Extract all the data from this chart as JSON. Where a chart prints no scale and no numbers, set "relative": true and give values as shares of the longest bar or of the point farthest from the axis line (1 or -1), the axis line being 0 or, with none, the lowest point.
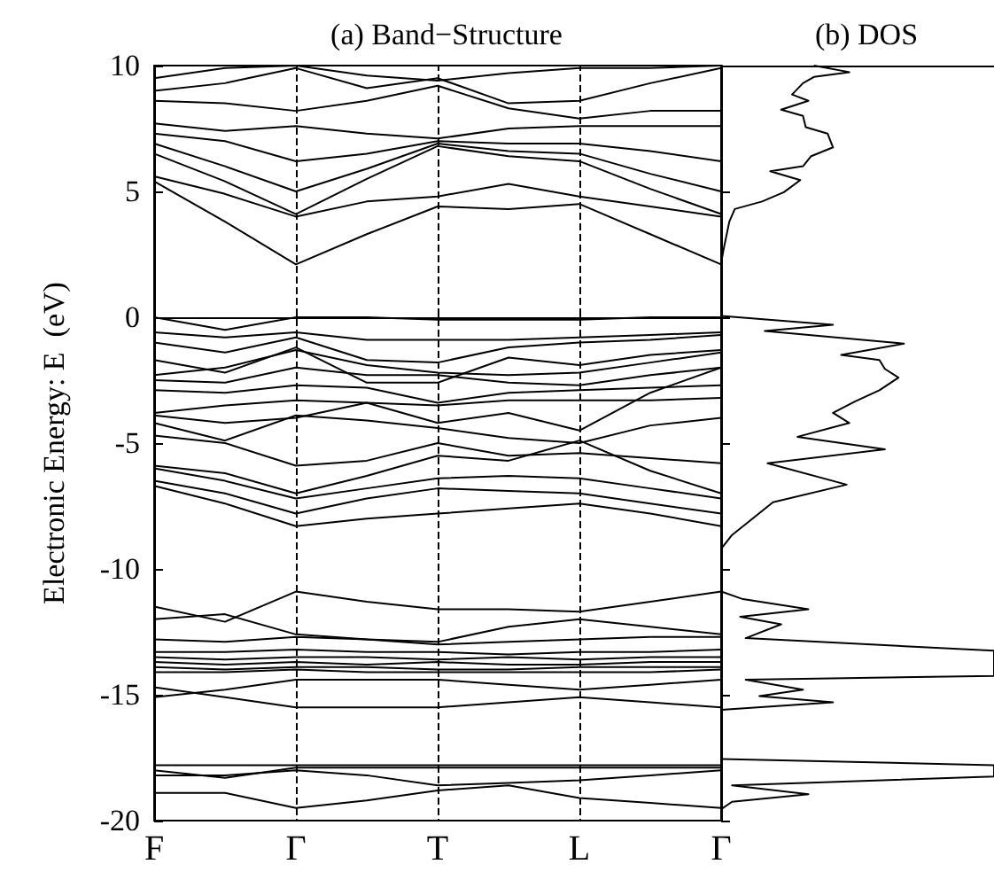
{
  "chart_data": [
    {
      "type": "line",
      "title": "(a) Band−Structure",
      "ylabel": "Electronic Energy: E  (eV)",
      "categories": [
        "F",
        null,
        "Γ",
        null,
        "T",
        null,
        "L",
        null,
        "Γ"
      ],
      "ylim": [
        -20,
        10
      ],
      "yticks": [
        -20,
        -15,
        -10,
        -5,
        0,
        5,
        10
      ],
      "marker": "none",
      "line_style": "solid",
      "ref_lines": [
        {
          "axis": "x",
          "value": "Γ",
          "line_style": "dashed"
        },
        {
          "axis": "x",
          "value": "T",
          "line_style": "dashed"
        },
        {
          "axis": "x",
          "value": "L",
          "line_style": "dashed"
        }
      ],
      "series": [
        {
          "color": "#000000",
          "values": [
            5.4,
            3.8,
            2.1,
            3.3,
            4.4,
            4.3,
            4.5,
            3.3,
            2.1
          ]
        },
        {
          "color": "#000000",
          "values": [
            5.6,
            4.9,
            4.0,
            4.6,
            4.8,
            5.3,
            4.8,
            4.4,
            4.0
          ]
        },
        {
          "color": "#000000",
          "values": [
            6.5,
            5.4,
            4.1,
            5.5,
            6.8,
            6.4,
            6.2,
            5.1,
            4.1
          ]
        },
        {
          "color": "#000000",
          "values": [
            6.9,
            6.0,
            5.0,
            5.9,
            6.9,
            6.6,
            6.5,
            5.7,
            5.0
          ]
        },
        {
          "color": "#000000",
          "values": [
            7.3,
            7.0,
            6.2,
            6.5,
            7.0,
            6.9,
            6.9,
            6.6,
            6.2
          ]
        },
        {
          "color": "#000000",
          "values": [
            7.7,
            7.4,
            7.6,
            7.3,
            7.1,
            7.5,
            7.6,
            7.6,
            7.6
          ]
        },
        {
          "color": "#000000",
          "values": [
            8.6,
            8.5,
            8.2,
            8.6,
            9.2,
            8.3,
            7.9,
            8.2,
            8.2
          ]
        },
        {
          "color": "#000000",
          "values": [
            9.0,
            9.3,
            9.9,
            9.1,
            9.5,
            8.5,
            8.6,
            9.3,
            9.9
          ]
        },
        {
          "color": "#000000",
          "values": [
            9.5,
            9.9,
            10.0,
            9.6,
            9.4,
            9.7,
            9.9,
            9.9,
            10.0
          ]
        },
        {
          "color": "#000000",
          "values": [
            0.0,
            -0.5,
            0.0,
            0.0,
            -0.1,
            -0.1,
            -0.1,
            0.0,
            0.0
          ]
        },
        {
          "color": "#000000",
          "values": [
            -0.6,
            -0.8,
            -0.6,
            -0.9,
            -0.9,
            -0.9,
            -0.8,
            -0.7,
            -0.6
          ]
        },
        {
          "color": "#000000",
          "values": [
            -1.0,
            -1.4,
            -0.8,
            -1.7,
            -1.8,
            -1.2,
            -1.0,
            -0.9,
            -0.7
          ]
        },
        {
          "color": "#000000",
          "values": [
            -1.7,
            -2.2,
            -1.2,
            -2.6,
            -2.6,
            -1.6,
            -1.9,
            -1.5,
            -1.3
          ]
        },
        {
          "color": "#000000",
          "values": [
            -2.3,
            -2.0,
            -1.3,
            -1.9,
            -2.2,
            -2.3,
            -2.2,
            -1.8,
            -1.4
          ]
        },
        {
          "color": "#000000",
          "values": [
            -2.5,
            -2.6,
            -2.0,
            -2.3,
            -2.3,
            -2.6,
            -2.7,
            -2.3,
            -2.0
          ]
        },
        {
          "color": "#000000",
          "values": [
            -2.9,
            -3.0,
            -2.7,
            -2.8,
            -3.4,
            -3.0,
            -2.9,
            -2.8,
            -2.7
          ]
        },
        {
          "color": "#000000",
          "values": [
            -3.8,
            -3.5,
            -3.3,
            -3.4,
            -3.5,
            -3.3,
            -3.3,
            -3.3,
            -3.2
          ]
        },
        {
          "color": "#000000",
          "values": [
            -3.9,
            -4.2,
            -4.0,
            -3.4,
            -4.2,
            -3.8,
            -4.5,
            -3.0,
            -2.0
          ]
        },
        {
          "color": "#000000",
          "values": [
            -4.2,
            -4.9,
            -3.9,
            -4.1,
            -4.4,
            -4.8,
            -5.0,
            -4.3,
            -4.0
          ]
        },
        {
          "color": "#000000",
          "values": [
            -4.7,
            -5.0,
            -5.9,
            -5.7,
            -5.0,
            -5.5,
            -5.4,
            -5.6,
            -5.8
          ]
        },
        {
          "color": "#000000",
          "values": [
            -5.9,
            -6.2,
            -7.0,
            -6.3,
            -5.5,
            -5.7,
            -4.9,
            -6.1,
            -7.0
          ]
        },
        {
          "color": "#000000",
          "values": [
            -6.0,
            -6.5,
            -7.2,
            -6.8,
            -6.4,
            -6.3,
            -6.4,
            -6.8,
            -7.2
          ]
        },
        {
          "color": "#000000",
          "values": [
            -6.5,
            -7.0,
            -7.8,
            -7.2,
            -6.8,
            -6.9,
            -7.0,
            -7.4,
            -7.8
          ]
        },
        {
          "color": "#000000",
          "values": [
            -6.7,
            -7.4,
            -8.3,
            -8.0,
            -7.8,
            -7.6,
            -7.4,
            -7.8,
            -8.3
          ]
        },
        {
          "color": "#000000",
          "values": [
            -11.5,
            -12.1,
            -10.9,
            -11.3,
            -11.6,
            -11.6,
            -11.7,
            -11.3,
            -10.9
          ]
        },
        {
          "color": "#000000",
          "values": [
            -12.0,
            -11.8,
            -12.6,
            -12.8,
            -12.9,
            -12.3,
            -12.0,
            -12.3,
            -12.6
          ]
        },
        {
          "color": "#000000",
          "values": [
            -12.8,
            -12.9,
            -12.7,
            -12.8,
            -13.0,
            -12.9,
            -12.8,
            -12.7,
            -12.7
          ]
        },
        {
          "color": "#000000",
          "values": [
            -13.3,
            -13.3,
            -13.2,
            -13.3,
            -13.3,
            -13.4,
            -13.3,
            -13.3,
            -13.2
          ]
        },
        {
          "color": "#000000",
          "values": [
            -13.5,
            -13.6,
            -13.5,
            -13.5,
            -13.6,
            -13.5,
            -13.6,
            -13.5,
            -13.5
          ]
        },
        {
          "color": "#000000",
          "values": [
            -13.7,
            -13.8,
            -13.7,
            -13.8,
            -13.7,
            -13.8,
            -13.8,
            -13.7,
            -13.7
          ]
        },
        {
          "color": "#000000",
          "values": [
            -13.9,
            -14.0,
            -13.9,
            -13.9,
            -14.0,
            -14.0,
            -13.9,
            -13.9,
            -13.9
          ]
        },
        {
          "color": "#000000",
          "values": [
            -14.1,
            -14.1,
            -14.0,
            -14.1,
            -14.1,
            -14.1,
            -14.1,
            -14.1,
            -14.0
          ]
        },
        {
          "color": "#000000",
          "values": [
            -15.1,
            -14.8,
            -14.4,
            -14.4,
            -14.4,
            -14.6,
            -14.8,
            -14.6,
            -14.4
          ]
        },
        {
          "color": "#000000",
          "values": [
            -14.7,
            -15.1,
            -15.5,
            -15.5,
            -15.5,
            -15.3,
            -15.1,
            -15.3,
            -15.5
          ]
        },
        {
          "color": "#000000",
          "values": [
            -17.8,
            -17.8,
            -17.8,
            -17.8,
            -17.8,
            -17.8,
            -17.8,
            -17.8,
            -17.8
          ]
        },
        {
          "color": "#000000",
          "values": [
            -18.0,
            -18.3,
            -17.9,
            -17.9,
            -17.9,
            -17.9,
            -17.9,
            -17.9,
            -17.9
          ]
        },
        {
          "color": "#000000",
          "values": [
            -18.2,
            -18.2,
            -18.0,
            -18.2,
            -18.6,
            -18.5,
            -18.4,
            -18.2,
            -18.0
          ]
        },
        {
          "color": "#000000",
          "values": [
            -18.9,
            -18.9,
            -19.5,
            -19.2,
            -18.8,
            -18.6,
            -19.1,
            -19.3,
            -19.5
          ]
        }
      ]
    },
    {
      "type": "line",
      "title": "(b) DOS",
      "orientation": "horizontal",
      "relative": true,
      "ylim": [
        -20,
        10
      ],
      "yticks": [
        -20,
        -15,
        -10,
        -5,
        0,
        5,
        10
      ],
      "tick_labels": false,
      "marker": "none",
      "line_style": "solid",
      "series": [
        {
          "color": "#000000",
          "x": [
            10.0,
            9.74,
            9.55,
            9.3,
            8.85,
            8.6,
            8.25,
            8.0,
            7.55,
            7.3,
            6.75,
            6.4,
            6.0,
            5.8,
            5.45,
            4.97,
            4.6,
            4.3,
            3.8,
            2.75,
            2.15,
            1.0,
            0.05,
            -0.3,
            -0.55,
            -1.05,
            -1.5,
            -1.7,
            -2.05,
            -2.4,
            -2.9,
            -3.35,
            -3.8,
            -4.2,
            -4.75,
            -5.25,
            -5.8,
            -6.65,
            -7.35,
            -8.65,
            -9.2,
            -10.0,
            -10.9,
            -11.2,
            -11.6,
            -11.9,
            -12.2,
            -12.75,
            -13.25,
            -14.25,
            -14.4,
            -14.8,
            -15.05,
            -15.3,
            -15.6,
            -16.5,
            -17.55,
            -17.8,
            -18.25,
            -18.6,
            -18.95,
            -19.25,
            -19.55
          ],
          "values": [
            0.34,
            0.47,
            0.34,
            0.3,
            0.26,
            0.32,
            0.22,
            0.3,
            0.31,
            0.39,
            0.41,
            0.33,
            0.3,
            0.18,
            0.29,
            0.23,
            0.15,
            0.05,
            0.03,
            0.01,
            0,
            null,
            0,
            0.41,
            0.16,
            0.67,
            0.44,
            0.58,
            0.6,
            0.65,
            0.58,
            0.49,
            0.41,
            0.47,
            0.28,
            0.6,
            0.17,
            0.46,
            0.19,
            0.04,
            0,
            null,
            0,
            0.08,
            0.32,
            0.07,
            0.22,
            0.09,
            1,
            1,
            0.09,
            0.3,
            0.14,
            0.41,
            0,
            null,
            0,
            1,
            1,
            0.04,
            0.32,
            0.04,
            0
          ]
        }
      ]
    }
  ]
}
